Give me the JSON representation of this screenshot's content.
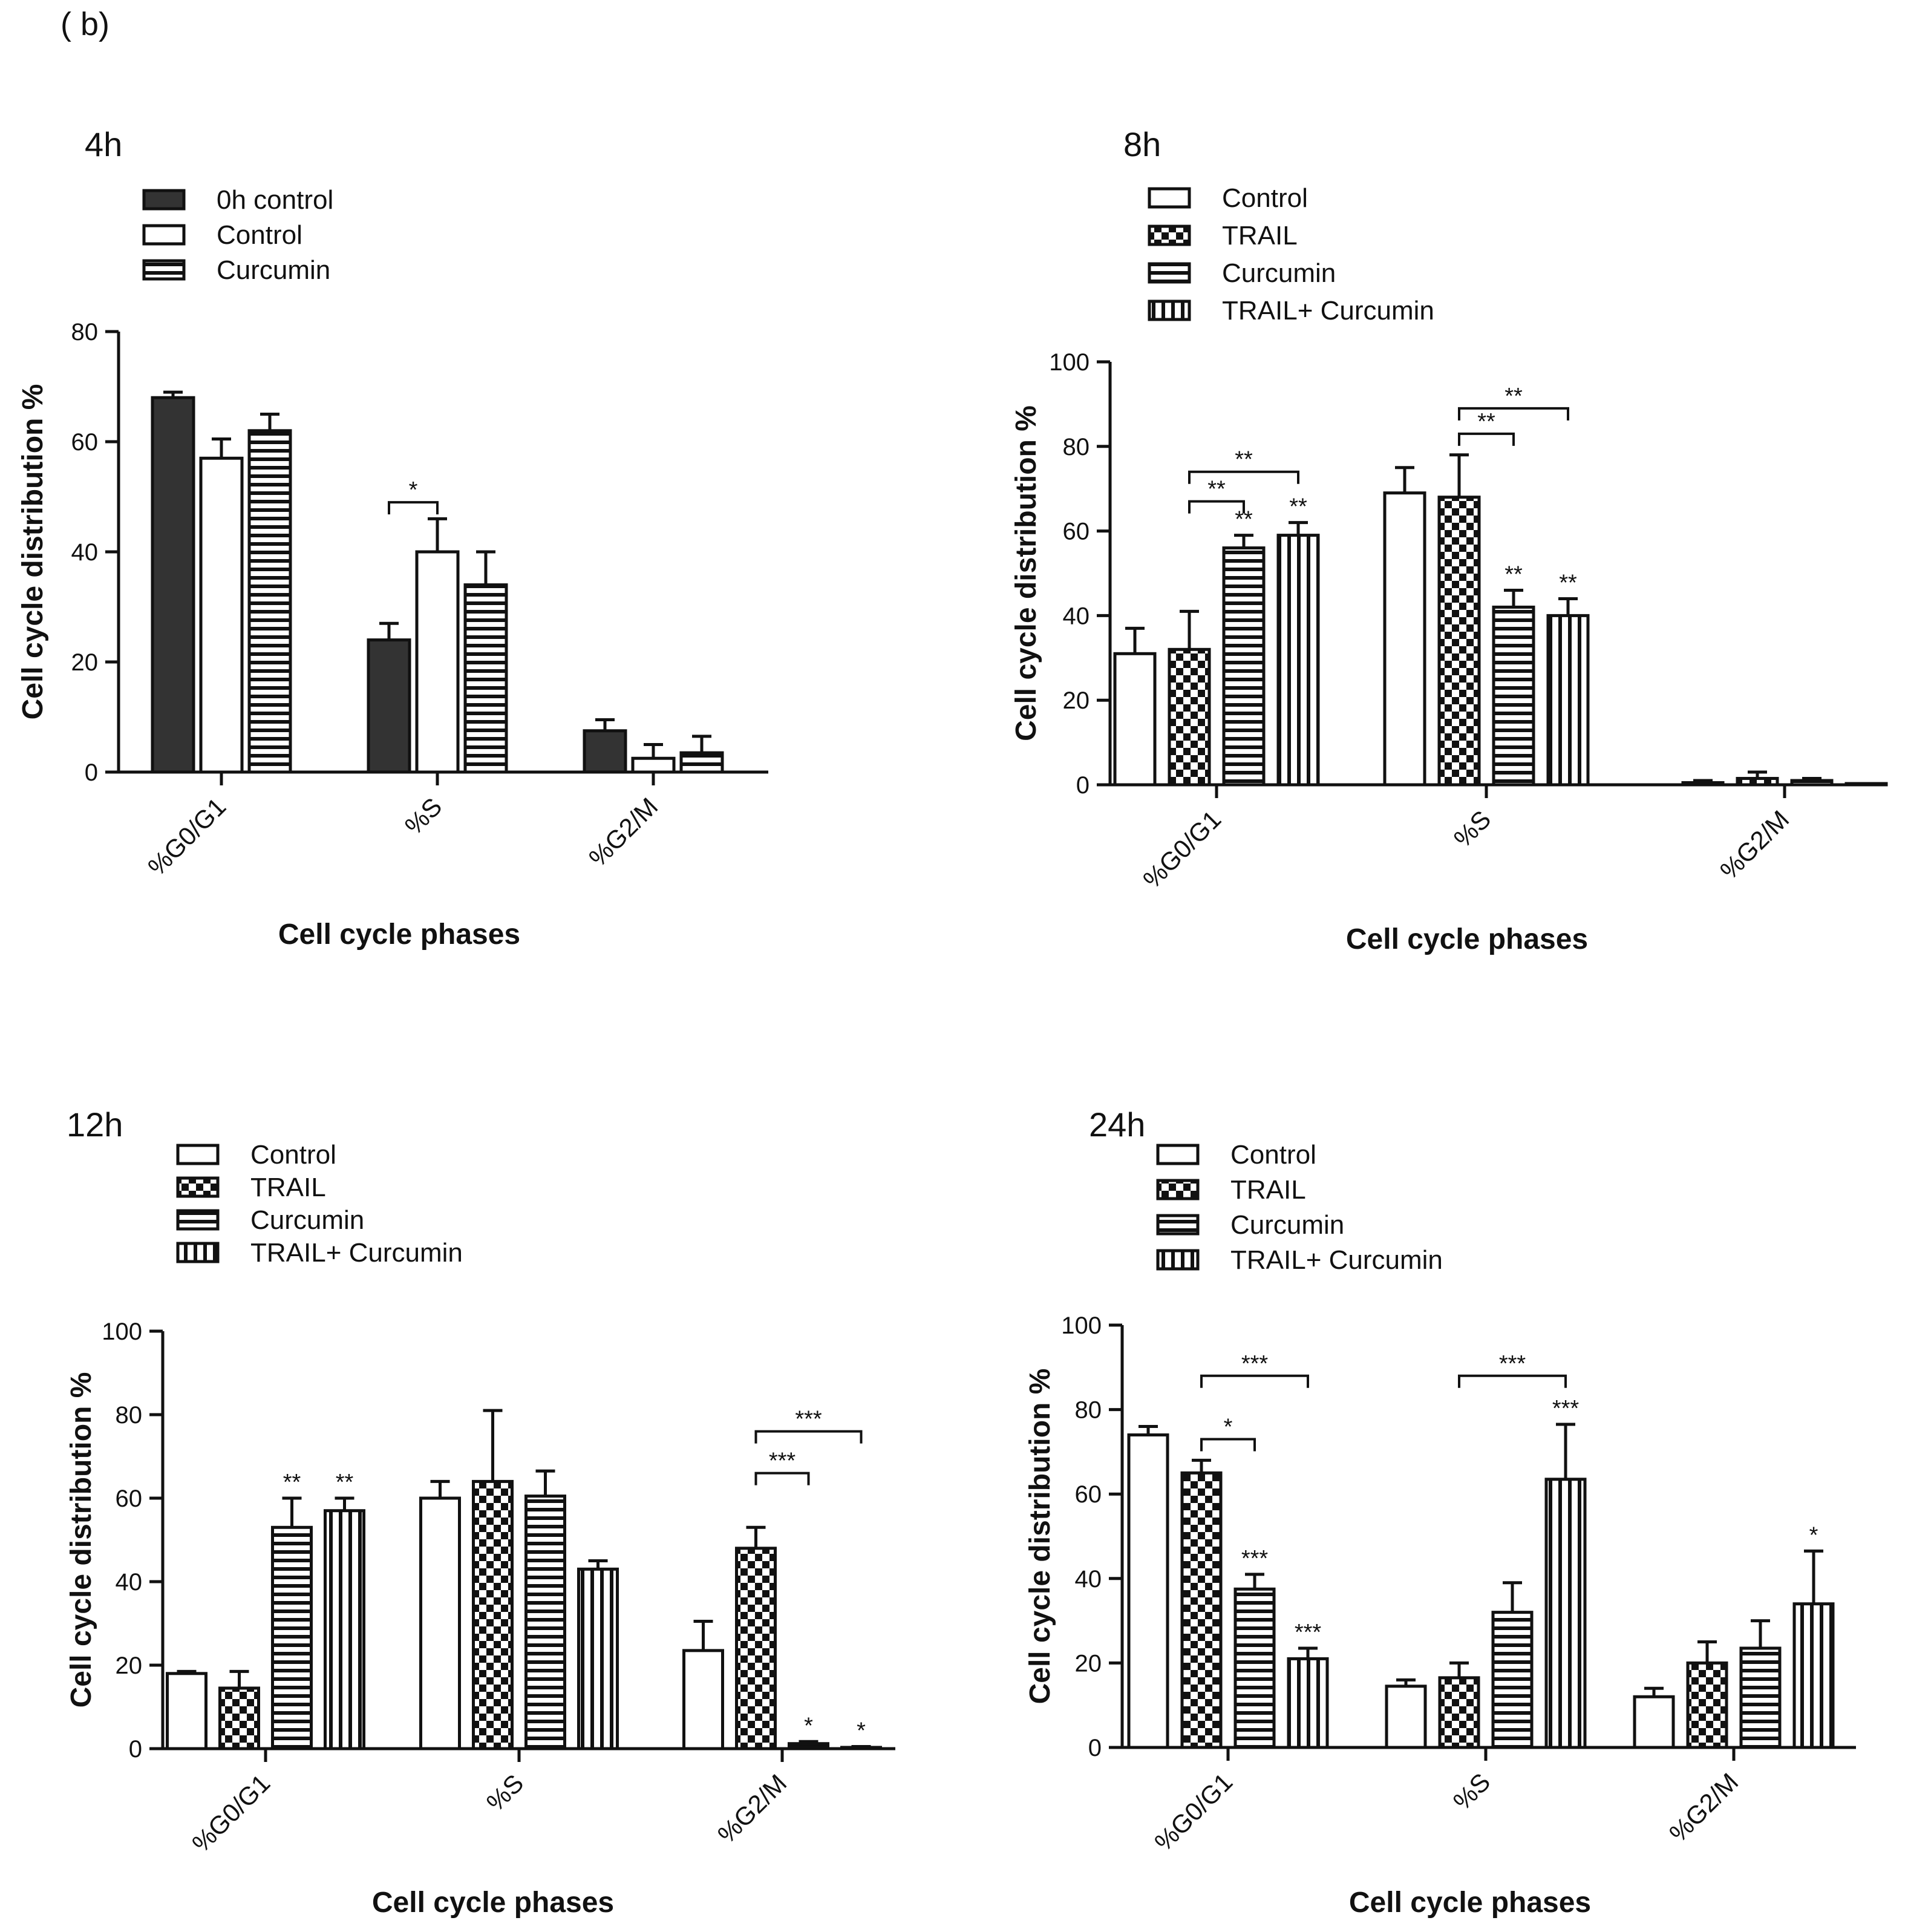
{
  "figure_label": "( b)",
  "chart_data": [
    {
      "type": "bar",
      "title": "4h",
      "xlabel": "Cell cycle phases",
      "ylabel": "Cell cycle distribution %",
      "ylim": [
        0,
        80
      ],
      "yticks": [
        "0",
        "20",
        "40",
        "60",
        "80"
      ],
      "categories": [
        "%G0/G1",
        "%S",
        "%G2/M"
      ],
      "series": [
        {
          "name": "0h control",
          "pattern": "solid",
          "values": [
            68,
            24,
            7.5
          ],
          "errors": [
            1,
            3,
            2
          ]
        },
        {
          "name": "Control",
          "pattern": "empty",
          "values": [
            57,
            40,
            2.5
          ],
          "errors": [
            3.5,
            6,
            2.5
          ]
        },
        {
          "name": "Curcumin",
          "pattern": "hstripe",
          "values": [
            62,
            34,
            3.5
          ],
          "errors": [
            3,
            6,
            3
          ]
        }
      ],
      "annotations": [
        {
          "type": "bracket",
          "text": "*",
          "category": 1,
          "from_series": 0,
          "to_series": 1,
          "y": 49
        }
      ]
    },
    {
      "type": "bar",
      "title": "8h",
      "xlabel": "Cell cycle phases",
      "ylabel": "Cell cycle distribution %",
      "ylim": [
        0,
        100
      ],
      "yticks": [
        "0",
        "20",
        "40",
        "60",
        "80",
        "100"
      ],
      "categories": [
        "%G0/G1",
        "%S",
        "%G2/M"
      ],
      "series": [
        {
          "name": "Control",
          "pattern": "empty",
          "values": [
            31,
            69,
            0.5
          ],
          "errors": [
            6,
            6,
            0.5
          ]
        },
        {
          "name": "TRAIL",
          "pattern": "check",
          "values": [
            32,
            68,
            1.5
          ],
          "errors": [
            9,
            10,
            1.5
          ]
        },
        {
          "name": "Curcumin",
          "pattern": "hstripe",
          "values": [
            56,
            42,
            1
          ],
          "errors": [
            3,
            4,
            0.5
          ]
        },
        {
          "name": "TRAIL+ Curcumin",
          "pattern": "vstripe",
          "values": [
            59,
            40,
            0
          ],
          "errors": [
            3,
            4,
            0
          ]
        }
      ],
      "annotations": [
        {
          "type": "star",
          "text": "**",
          "category": 0,
          "series": 2
        },
        {
          "type": "star",
          "text": "**",
          "category": 0,
          "series": 3
        },
        {
          "type": "star",
          "text": "**",
          "category": 1,
          "series": 2
        },
        {
          "type": "star",
          "text": "**",
          "category": 1,
          "series": 3
        },
        {
          "type": "bracket",
          "text": "**",
          "category": 0,
          "from_series": 1,
          "to_series": 2,
          "y": 67
        },
        {
          "type": "bracket",
          "text": "**",
          "category": 0,
          "from_series": 1,
          "to_series": 3,
          "y": 74
        },
        {
          "type": "bracket",
          "text": "**",
          "category": 1,
          "from_series": 1,
          "to_series": 2,
          "y": 83
        },
        {
          "type": "bracket",
          "text": "**",
          "category": 1,
          "from_series": 1,
          "to_series": 3,
          "y": 89
        }
      ]
    },
    {
      "type": "bar",
      "title": "12h",
      "xlabel": "Cell cycle phases",
      "ylabel": "Cell cycle distribution %",
      "ylim": [
        0,
        100
      ],
      "yticks": [
        "0",
        "20",
        "40",
        "60",
        "80",
        "100"
      ],
      "categories": [
        "%G0/G1",
        "%S",
        "%G2/M"
      ],
      "series": [
        {
          "name": "Control",
          "pattern": "empty",
          "values": [
            18,
            60,
            23.5
          ],
          "errors": [
            0.5,
            4,
            7
          ]
        },
        {
          "name": "TRAIL",
          "pattern": "check",
          "values": [
            14.5,
            64,
            48
          ],
          "errors": [
            4,
            17,
            5
          ]
        },
        {
          "name": "Curcumin",
          "pattern": "hstripe",
          "values": [
            53,
            60.5,
            1.2
          ],
          "errors": [
            7,
            6,
            0.5
          ]
        },
        {
          "name": "TRAIL+ Curcumin",
          "pattern": "vstripe",
          "values": [
            57,
            43,
            0.3
          ],
          "errors": [
            3,
            2,
            0.2
          ]
        }
      ],
      "annotations": [
        {
          "type": "star",
          "text": "**",
          "category": 0,
          "series": 2
        },
        {
          "type": "star",
          "text": "**",
          "category": 0,
          "series": 3
        },
        {
          "type": "star",
          "text": "*",
          "category": 2,
          "series": 2
        },
        {
          "type": "star",
          "text": "*",
          "category": 2,
          "series": 3
        },
        {
          "type": "bracket",
          "text": "***",
          "category": 2,
          "from_series": 1,
          "to_series": 2,
          "y": 66
        },
        {
          "type": "bracket",
          "text": "***",
          "category": 2,
          "from_series": 1,
          "to_series": 3,
          "y": 76
        }
      ]
    },
    {
      "type": "bar",
      "title": "24h",
      "xlabel": "Cell cycle phases",
      "ylabel": "Cell cycle distribution %",
      "ylim": [
        0,
        100
      ],
      "yticks": [
        "0",
        "20",
        "40",
        "60",
        "80",
        "100"
      ],
      "categories": [
        "%G0/G1",
        "%S",
        "%G2/M"
      ],
      "series": [
        {
          "name": "Control",
          "pattern": "empty",
          "values": [
            74,
            14.5,
            12
          ],
          "errors": [
            2,
            1.5,
            2
          ]
        },
        {
          "name": "TRAIL",
          "pattern": "check",
          "values": [
            65,
            16.5,
            20
          ],
          "errors": [
            3,
            3.5,
            5
          ]
        },
        {
          "name": "Curcumin",
          "pattern": "hstripe",
          "values": [
            37.5,
            32,
            23.5
          ],
          "errors": [
            3.5,
            7,
            6.5
          ]
        },
        {
          "name": "TRAIL+ Curcumin",
          "pattern": "vstripe",
          "values": [
            21,
            63.5,
            34
          ],
          "errors": [
            2.5,
            13,
            12.5
          ]
        }
      ],
      "annotations": [
        {
          "type": "star",
          "text": "***",
          "category": 0,
          "series": 2
        },
        {
          "type": "star",
          "text": "***",
          "category": 0,
          "series": 3
        },
        {
          "type": "star",
          "text": "***",
          "category": 1,
          "series": 3
        },
        {
          "type": "star",
          "text": "*",
          "category": 2,
          "series": 3
        },
        {
          "type": "bracket",
          "text": "*",
          "category": 0,
          "from_series": 1,
          "to_series": 2,
          "y": 73
        },
        {
          "type": "bracket",
          "text": "***",
          "category": 0,
          "from_series": 1,
          "to_series": 3,
          "y": 88
        },
        {
          "type": "bracket",
          "text": "***",
          "category": 1,
          "from_series": 1,
          "to_series": 3,
          "y": 88
        }
      ]
    }
  ]
}
